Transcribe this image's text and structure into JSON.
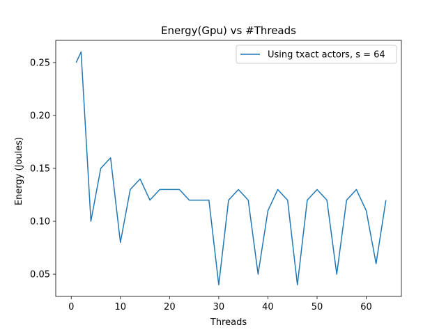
{
  "chart_data": {
    "type": "line",
    "title": "Energy(Gpu) vs #Threads",
    "xlabel": "Threads",
    "ylabel": "Energy (Joules)",
    "xlim": [
      -3.15,
      67.15
    ],
    "ylim": [
      0.029,
      0.271
    ],
    "xticks": [
      0,
      10,
      20,
      30,
      40,
      50,
      60
    ],
    "xtick_labels": [
      "0",
      "10",
      "20",
      "30",
      "40",
      "50",
      "60"
    ],
    "yticks": [
      0.05,
      0.1,
      0.15,
      0.2,
      0.25
    ],
    "ytick_labels": [
      "0.05",
      "0.10",
      "0.15",
      "0.20",
      "0.25"
    ],
    "grid": false,
    "legend_position": "upper right",
    "series": [
      {
        "name": "Using txact actors, s = 64",
        "color": "#1f77b4",
        "x": [
          1,
          2,
          4,
          6,
          8,
          10,
          12,
          14,
          16,
          18,
          20,
          22,
          24,
          26,
          28,
          30,
          32,
          34,
          36,
          38,
          40,
          42,
          44,
          46,
          48,
          50,
          52,
          54,
          56,
          58,
          60,
          62,
          64
        ],
        "y": [
          0.25,
          0.26,
          0.1,
          0.15,
          0.16,
          0.08,
          0.13,
          0.14,
          0.12,
          0.13,
          0.13,
          0.13,
          0.12,
          0.12,
          0.12,
          0.04,
          0.12,
          0.13,
          0.12,
          0.05,
          0.11,
          0.13,
          0.12,
          0.04,
          0.12,
          0.13,
          0.12,
          0.05,
          0.12,
          0.13,
          0.11,
          0.06,
          0.12
        ]
      }
    ]
  }
}
